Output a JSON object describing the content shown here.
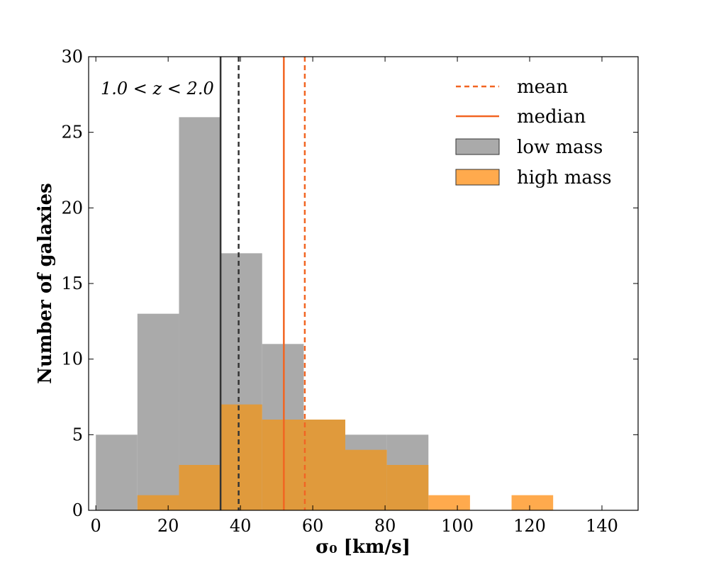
{
  "chart_data": {
    "type": "bar",
    "xlabel": "σ₀ [km/s]",
    "ylabel": "Number of galaxies",
    "xlim": [
      -2,
      150
    ],
    "ylim": [
      0,
      30
    ],
    "xticks": [
      0,
      20,
      40,
      60,
      80,
      100,
      120,
      140
    ],
    "yticks": [
      0,
      5,
      10,
      15,
      20,
      25,
      30
    ],
    "bin_edges": [
      0,
      11.5,
      23.0,
      34.5,
      46.0,
      57.5,
      69.0,
      80.5,
      92.0,
      103.5,
      115.0,
      126.5
    ],
    "series": [
      {
        "name": "low mass",
        "color": "#aaaaaa",
        "values": [
          5,
          13,
          26,
          17,
          11,
          6,
          5,
          5,
          0,
          0,
          0
        ]
      },
      {
        "name": "high mass",
        "color": "#ffaa4d",
        "overlap_color": "#e09a3c",
        "values": [
          0,
          1,
          3,
          7,
          6,
          6,
          4,
          3,
          1,
          0,
          1
        ]
      }
    ],
    "vlines": [
      {
        "group": "low mass",
        "stat": "median",
        "x": 34.5,
        "color": "#333333",
        "dash": false
      },
      {
        "group": "low mass",
        "stat": "mean",
        "x": 39.5,
        "color": "#333333",
        "dash": true
      },
      {
        "group": "high mass",
        "stat": "median",
        "x": 52.0,
        "color": "#f26522",
        "dash": false
      },
      {
        "group": "high mass",
        "stat": "mean",
        "x": 57.8,
        "color": "#f26522",
        "dash": true
      }
    ],
    "legend": {
      "placement": "top-right",
      "entries": [
        {
          "label": "mean",
          "kind": "dashed-line",
          "color": "#f26522"
        },
        {
          "label": "median",
          "kind": "solid-line",
          "color": "#f26522"
        },
        {
          "label": "low mass",
          "kind": "patch",
          "color": "#aaaaaa"
        },
        {
          "label": "high mass",
          "kind": "patch",
          "color": "#ffaa4d"
        }
      ]
    },
    "annotation": "1.0 < z < 2.0",
    "grid": false
  }
}
